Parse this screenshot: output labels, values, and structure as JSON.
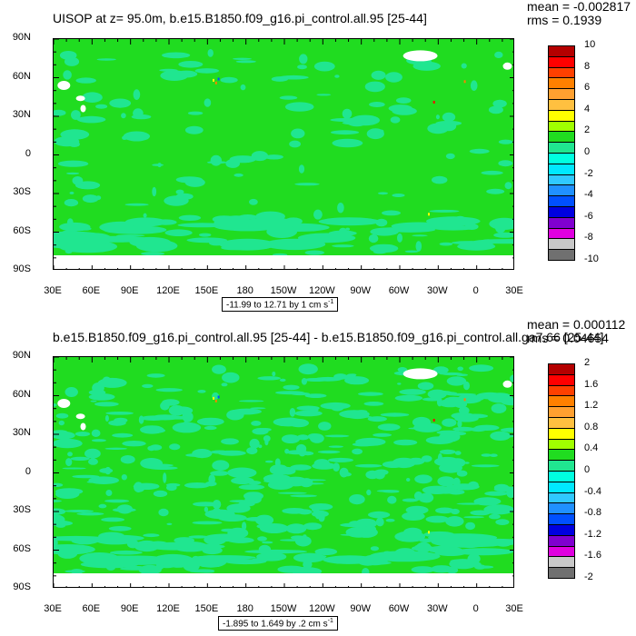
{
  "chart_data": [
    {
      "type": "heatmap",
      "title": "UISOP at z=  95.0m, b.e15.B1850.f09_g16.pi_control.all.95 [25-44]",
      "stats": {
        "mean": "mean = -0.002817",
        "rms": "rms = 0.1939"
      },
      "x_ticks": [
        "30E",
        "60E",
        "90E",
        "120E",
        "150E",
        "180",
        "150W",
        "120W",
        "90W",
        "60W",
        "30W",
        "0",
        "30E"
      ],
      "y_ticks": [
        "90N",
        "60N",
        "30N",
        "0",
        "30S",
        "60S",
        "90S"
      ],
      "xlim": [
        30,
        390
      ],
      "ylim": [
        -90,
        90
      ],
      "range_label": "-11.99 to 12.71 by 1 cm s",
      "range_sup": "-1",
      "colorbar_labels": [
        "10",
        "8",
        "6",
        "4",
        "2",
        "0",
        "-2",
        "-4",
        "-6",
        "-8",
        "-10"
      ],
      "colors": [
        "#b40000",
        "#ff0000",
        "#ff4000",
        "#ff8000",
        "#ffa030",
        "#ffc040",
        "#ffff00",
        "#a0ff00",
        "#20dc20",
        "#20e690",
        "#00ffe0",
        "#00e8ff",
        "#30c8ff",
        "#2090ff",
        "#0050ff",
        "#0000e0",
        "#8000d0",
        "#e000e0",
        "#c8c8c8",
        "#707070"
      ],
      "background_level": "0",
      "background_color": "#20dc20",
      "secondary_color": "#20e690"
    },
    {
      "type": "heatmap",
      "title": "b.e15.B1850.f09_g16.pi_control.all.95 [25-44] - b.e15.B1850.f09_g16.pi_control.all.ga7.66 [25-44]",
      "stats": {
        "mean": "mean = 0.000112",
        "rms": "rms = 0.04654"
      },
      "x_ticks": [
        "30E",
        "60E",
        "90E",
        "120E",
        "150E",
        "180",
        "150W",
        "120W",
        "90W",
        "60W",
        "30W",
        "0",
        "30E"
      ],
      "y_ticks": [
        "90N",
        "60N",
        "30N",
        "0",
        "30S",
        "60S",
        "90S"
      ],
      "xlim": [
        30,
        390
      ],
      "ylim": [
        -90,
        90
      ],
      "range_label": "-1.895 to 1.649 by .2 cm s",
      "range_sup": "-1",
      "colorbar_labels": [
        "2",
        "1.6",
        "1.2",
        "0.8",
        "0.4",
        "0",
        "-0.4",
        "-0.8",
        "-1.2",
        "-1.6",
        "-2"
      ],
      "colors": [
        "#b40000",
        "#ff0000",
        "#ff4000",
        "#ff8000",
        "#ffa030",
        "#ffc040",
        "#ffff00",
        "#a0ff00",
        "#20dc20",
        "#20e690",
        "#00ffe0",
        "#00e8ff",
        "#30c8ff",
        "#2090ff",
        "#0050ff",
        "#0000e0",
        "#8000d0",
        "#e000e0",
        "#c8c8c8",
        "#707070"
      ],
      "background_level": "0",
      "background_color": "#20dc20",
      "secondary_color": "#20e690"
    }
  ]
}
